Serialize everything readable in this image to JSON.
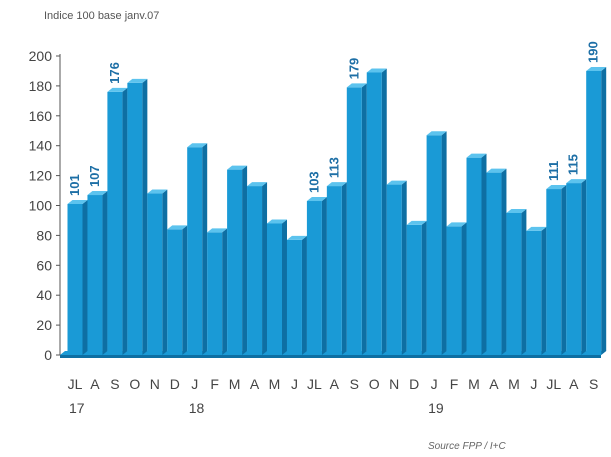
{
  "chart_data": {
    "type": "bar",
    "subtitle": "Indice 100 base janv.07",
    "source": "Source FPP / I+C",
    "categories": [
      "JL",
      "A",
      "S",
      "O",
      "N",
      "D",
      "J",
      "F",
      "M",
      "A",
      "M",
      "J",
      "JL",
      "A",
      "S",
      "O",
      "N",
      "D",
      "J",
      "F",
      "M",
      "A",
      "M",
      "J",
      "JL",
      "A",
      "S"
    ],
    "years": [
      {
        "label": "17",
        "category_index": 0
      },
      {
        "label": "18",
        "category_index": 6
      },
      {
        "label": "19",
        "category_index": 18
      }
    ],
    "values": [
      101,
      107,
      176,
      182,
      108,
      84,
      139,
      82,
      124,
      113,
      88,
      77,
      103,
      113,
      179,
      189,
      114,
      87,
      147,
      86,
      132,
      122,
      95,
      83,
      111,
      115,
      190
    ],
    "data_labels": [
      {
        "index": 0,
        "text": "101"
      },
      {
        "index": 1,
        "text": "107"
      },
      {
        "index": 2,
        "text": "176"
      },
      {
        "index": 12,
        "text": "103"
      },
      {
        "index": 13,
        "text": "113"
      },
      {
        "index": 14,
        "text": "179"
      },
      {
        "index": 24,
        "text": "111"
      },
      {
        "index": 25,
        "text": "115"
      },
      {
        "index": 26,
        "text": "190"
      }
    ],
    "y_ticks": [
      0,
      20,
      40,
      60,
      80,
      100,
      120,
      140,
      160,
      180,
      200
    ],
    "ylim": [
      0,
      200
    ],
    "xlabel": "",
    "ylabel": "",
    "grid": false,
    "colors": {
      "bar": "#1a9ad6",
      "bar_top": "#5cc3ee",
      "bar_dark": "#0e6fa3",
      "label": "#1d6fa6",
      "axis": "#555555",
      "floor": "#1a9ad6"
    }
  }
}
